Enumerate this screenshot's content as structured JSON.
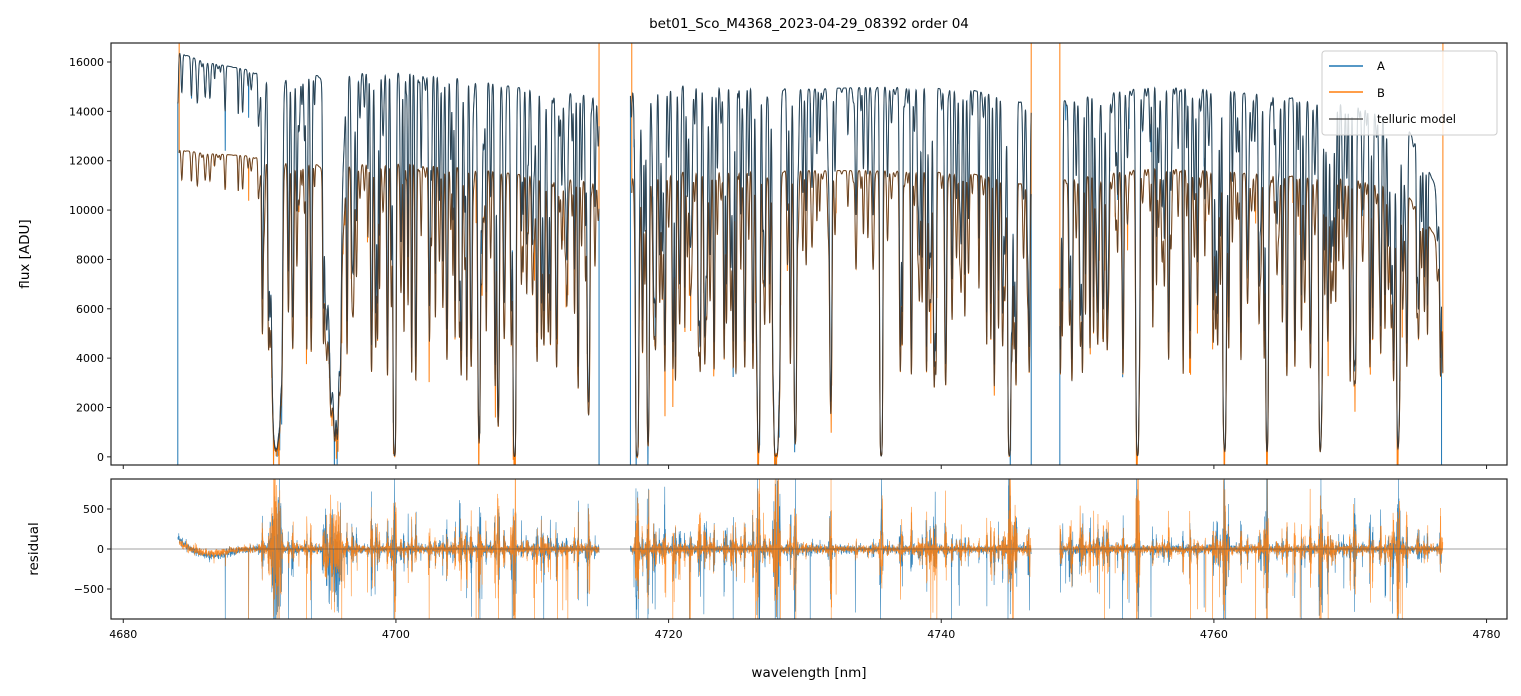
{
  "chart_data": {
    "type": "line",
    "title": "bet01_Sco_M4368_2023-04-29_08392  order 04",
    "xlabel": "wavelength [nm]",
    "xlim": [
      4679.1,
      4781.5
    ],
    "xticks": [
      4680,
      4700,
      4720,
      4740,
      4760,
      4780
    ],
    "grid": false,
    "panels": [
      {
        "name": "flux",
        "ylabel": "flux [ADU]",
        "ylim": [
          -330,
          16770
        ],
        "yticks": [
          0,
          2000,
          4000,
          6000,
          8000,
          10000,
          12000,
          14000,
          16000
        ]
      },
      {
        "name": "residual",
        "ylabel": "residual",
        "ylim": [
          -875,
          875
        ],
        "yticks": [
          -500,
          0,
          500
        ],
        "zero_line": true
      }
    ],
    "legend": {
      "position": "upper right",
      "entries": [
        {
          "label": "A",
          "color": "#1f77b4"
        },
        {
          "label": "B",
          "color": "#ff7f0e"
        },
        {
          "label": "telluric model",
          "color": "#333333"
        }
      ]
    },
    "series": [
      {
        "name": "A",
        "color": "#1f77b4",
        "segments": [
          [
            4684.0,
            4714.9
          ],
          [
            4717.2,
            4746.6
          ],
          [
            4748.7,
            4776.7
          ]
        ],
        "continuum": [
          [
            4684,
            16400
          ],
          [
            4686,
            16000
          ],
          [
            4689,
            15700
          ],
          [
            4691,
            15300
          ],
          [
            4695,
            15500
          ],
          [
            4700,
            15600
          ],
          [
            4705,
            15300
          ],
          [
            4710,
            14900
          ],
          [
            4714.9,
            14600
          ],
          [
            4717,
            14800
          ],
          [
            4722,
            15100
          ],
          [
            4730,
            14900
          ],
          [
            4736,
            15000
          ],
          [
            4742,
            14900
          ],
          [
            4746.6,
            14300
          ],
          [
            4748.7,
            14400
          ],
          [
            4755,
            15000
          ],
          [
            4760,
            14900
          ],
          [
            4765,
            14600
          ],
          [
            4770,
            14300
          ],
          [
            4774,
            13600
          ],
          [
            4776.7,
            10500
          ]
        ]
      },
      {
        "name": "B",
        "color": "#ff7f0e",
        "segments": [
          [
            4684.1,
            4714.9
          ],
          [
            4717.3,
            4746.6
          ],
          [
            4748.7,
            4776.8
          ]
        ],
        "continuum": [
          [
            4684,
            12450
          ],
          [
            4686,
            12300
          ],
          [
            4689,
            12200
          ],
          [
            4691,
            12000
          ],
          [
            4695,
            11800
          ],
          [
            4700,
            11900
          ],
          [
            4705,
            11700
          ],
          [
            4710,
            11400
          ],
          [
            4714.9,
            11100
          ],
          [
            4717,
            11300
          ],
          [
            4722,
            11600
          ],
          [
            4730,
            11600
          ],
          [
            4736,
            11600
          ],
          [
            4742,
            11500
          ],
          [
            4746.6,
            11000
          ],
          [
            4748.7,
            11200
          ],
          [
            4755,
            11700
          ],
          [
            4760,
            11600
          ],
          [
            4765,
            11400
          ],
          [
            4770,
            11300
          ],
          [
            4774,
            10800
          ],
          [
            4776.8,
            8500
          ]
        ]
      }
    ],
    "telluric_model": {
      "name": "telluric model",
      "color": "#333333",
      "prominent_lines": [
        {
          "center": 4691.2,
          "min_flux_fraction": 0.02
        },
        {
          "center": 4695.5,
          "min_flux_fraction": 0.15
        },
        {
          "center": 4699.9,
          "min_flux_fraction": 0.0
        },
        {
          "center": 4706.1,
          "min_flux_fraction": 0.1
        },
        {
          "center": 4707.5,
          "min_flux_fraction": 0.2
        },
        {
          "center": 4708.7,
          "min_flux_fraction": 0.0
        },
        {
          "center": 4714.1,
          "min_flux_fraction": 0.2
        },
        {
          "center": 4717.7,
          "min_flux_fraction": 0.0
        },
        {
          "center": 4718.5,
          "min_flux_fraction": 0.1
        },
        {
          "center": 4726.6,
          "min_flux_fraction": 0.02
        },
        {
          "center": 4727.9,
          "min_flux_fraction": 0.0
        },
        {
          "center": 4729.3,
          "min_flux_fraction": 0.05
        },
        {
          "center": 4731.9,
          "min_flux_fraction": 0.15
        },
        {
          "center": 4735.6,
          "min_flux_fraction": 0.0
        },
        {
          "center": 4745.0,
          "min_flux_fraction": 0.0
        },
        {
          "center": 4754.4,
          "min_flux_fraction": 0.0
        },
        {
          "center": 4760.8,
          "min_flux_fraction": 0.02
        },
        {
          "center": 4763.9,
          "min_flux_fraction": 0.02
        },
        {
          "center": 4767.8,
          "min_flux_fraction": 0.02
        },
        {
          "center": 4773.5,
          "min_flux_fraction": 0.03
        }
      ]
    }
  }
}
